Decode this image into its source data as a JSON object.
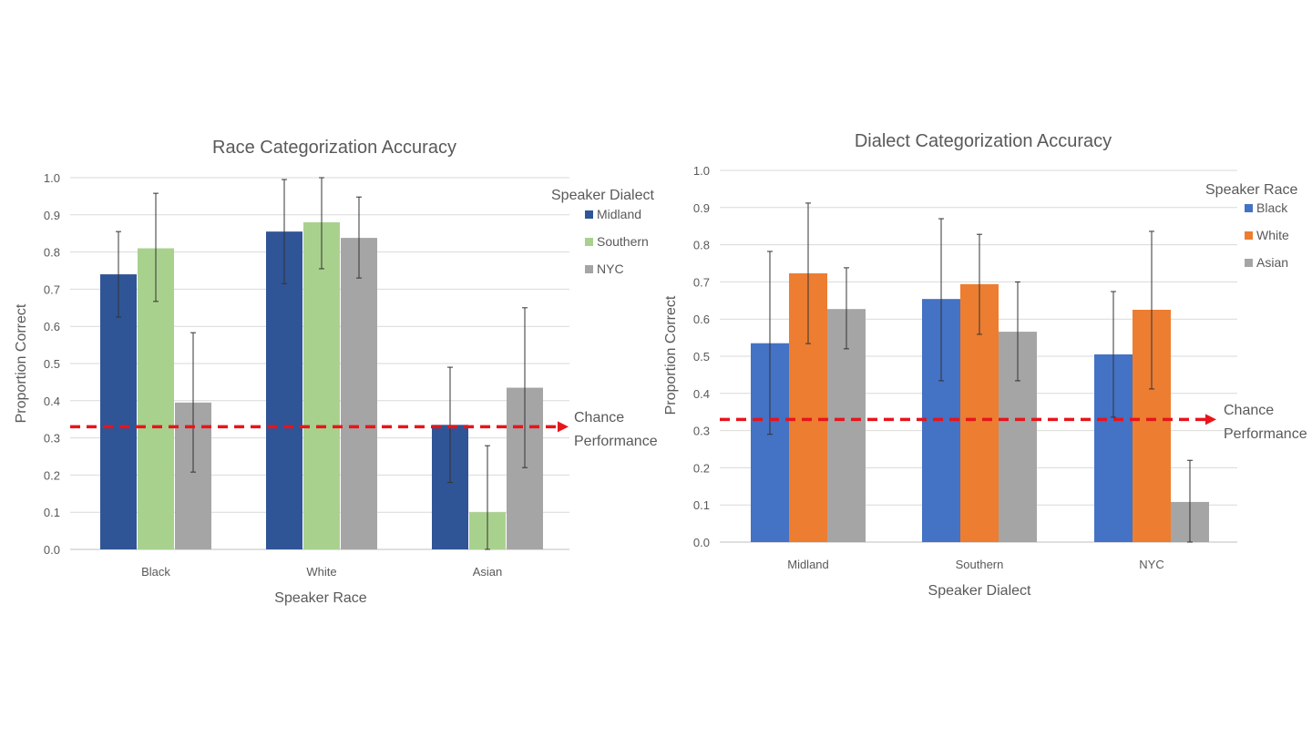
{
  "chart_data": [
    {
      "type": "bar",
      "title": "Race Categorization Accuracy",
      "xlabel": "Speaker Race",
      "ylabel": "Proportion Correct",
      "ylim": [
        0,
        1.0
      ],
      "yticks": [
        "0.0",
        "0.1",
        "0.2",
        "0.3",
        "0.4",
        "0.5",
        "0.6",
        "0.7",
        "0.8",
        "0.9",
        "1.0"
      ],
      "grid": true,
      "legend_title": "Speaker Dialect",
      "legend_placement": "right",
      "categories": [
        "Black",
        "White",
        "Asian"
      ],
      "series": [
        {
          "name": "Midland",
          "color": "#2F5597",
          "values": [
            0.74,
            0.855,
            0.335
          ],
          "err_low": [
            0.625,
            0.715,
            0.18
          ],
          "err_high": [
            0.855,
            0.995,
            0.49
          ]
        },
        {
          "name": "Southern",
          "color": "#A9D18E",
          "values": [
            0.81,
            0.88,
            0.1
          ],
          "err_low": [
            0.667,
            0.755,
            0.0
          ],
          "err_high": [
            0.958,
            1.0,
            0.279
          ]
        },
        {
          "name": "NYC",
          "color": "#A5A5A5",
          "values": [
            0.395,
            0.838,
            0.435
          ],
          "err_low": [
            0.208,
            0.73,
            0.22
          ],
          "err_high": [
            0.583,
            0.948,
            0.65
          ]
        }
      ],
      "reference_line": {
        "value": 0.33,
        "label_line1": "Chance",
        "label_line2": "Performance",
        "color": "#E8141B"
      }
    },
    {
      "type": "bar",
      "title": "Dialect Categorization Accuracy",
      "xlabel": "Speaker Dialect",
      "ylabel": "Proportion Correct",
      "ylim": [
        0,
        1.0
      ],
      "yticks": [
        "0.0",
        "0.1",
        "0.2",
        "0.3",
        "0.4",
        "0.5",
        "0.6",
        "0.7",
        "0.8",
        "0.9",
        "1.0"
      ],
      "grid": true,
      "legend_title": "Speaker Race",
      "legend_placement": "right",
      "categories": [
        "Midland",
        "Southern",
        "NYC"
      ],
      "series": [
        {
          "name": "Black",
          "color": "#4472C4",
          "values": [
            0.535,
            0.654,
            0.505
          ],
          "err_low": [
            0.29,
            0.434,
            0.336
          ],
          "err_high": [
            0.782,
            0.87,
            0.674
          ]
        },
        {
          "name": "White",
          "color": "#ED7D31",
          "values": [
            0.723,
            0.694,
            0.625
          ],
          "err_low": [
            0.534,
            0.559,
            0.412
          ],
          "err_high": [
            0.912,
            0.828,
            0.836
          ]
        },
        {
          "name": "Asian",
          "color": "#A5A5A5",
          "values": [
            0.627,
            0.566,
            0.108
          ],
          "err_low": [
            0.52,
            0.434,
            0.0
          ],
          "err_high": [
            0.738,
            0.7,
            0.22
          ]
        }
      ],
      "reference_line": {
        "value": 0.33,
        "label_line1": "Chance",
        "label_line2": "Performance",
        "color": "#E8141B"
      }
    }
  ]
}
